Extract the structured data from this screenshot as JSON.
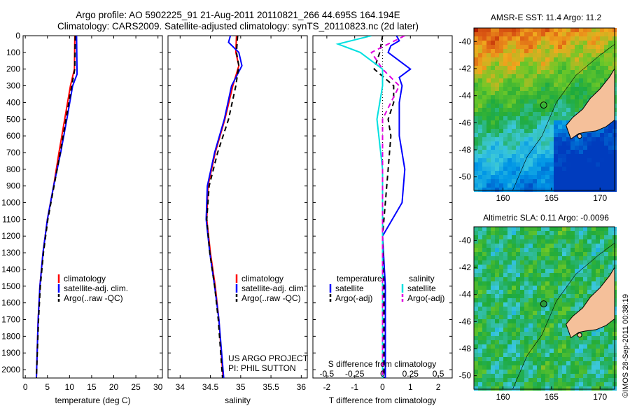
{
  "title_line1": "Argo profile: AO 5902225_91 21-Aug-2011 20110821_266 44.695S 164.194E",
  "title_line2": "Climatology: CARS2009. Satellite-adjusted climatology: synTS_20110823.nc (2d later)",
  "depth_ticks": [
    0,
    100,
    200,
    300,
    400,
    500,
    600,
    700,
    800,
    900,
    1000,
    1100,
    1200,
    1300,
    1400,
    1500,
    1600,
    1700,
    1800,
    1900,
    2000
  ],
  "colors": {
    "climatology": "#ff0000",
    "satellite": "#0000ff",
    "argo": "#000000",
    "sal_satellite": "#00e0e0",
    "sal_argo": "#e000e0",
    "land": "#f5c09a"
  },
  "chart_data": [
    {
      "type": "line",
      "name": "temperature-panel",
      "xlabel": "temperature (deg C)",
      "xlim": [
        -0.5,
        31
      ],
      "ylim": [
        2050,
        0
      ],
      "xticks": [
        0,
        5,
        10,
        15,
        20,
        25,
        30
      ],
      "legend_labels": [
        "climatology",
        "satellite-adj. clim.",
        "Argo(..raw -QC)"
      ],
      "legend_location": "center-left",
      "series": [
        {
          "name": "climatology",
          "style": "solid",
          "color": "#ff0000",
          "depth": [
            0,
            200,
            300,
            500,
            700,
            900,
            1100,
            1300,
            1500,
            1700,
            2050
          ],
          "values": [
            11.2,
            11.1,
            10.2,
            8.9,
            7.6,
            6.4,
            5.0,
            4.0,
            3.3,
            2.9,
            2.5
          ]
        },
        {
          "name": "satellite-adj. clim.",
          "style": "solid",
          "color": "#0000ff",
          "depth": [
            0,
            230,
            300,
            500,
            700,
            900,
            1100,
            1300,
            1500,
            1700,
            2050
          ],
          "values": [
            11.6,
            11.7,
            10.7,
            9.4,
            8.0,
            6.4,
            5.0,
            4.0,
            3.3,
            2.9,
            2.5
          ]
        },
        {
          "name": "Argo(..raw -QC)",
          "style": "dash",
          "color": "#000000",
          "depth": [
            0,
            200,
            300,
            500,
            700,
            900,
            1100,
            1300,
            1500,
            1700,
            2050
          ],
          "values": [
            11.3,
            11.2,
            10.5,
            9.2,
            7.9,
            6.5,
            5.1,
            4.1,
            3.4,
            3.0,
            2.5
          ]
        }
      ]
    },
    {
      "type": "line",
      "name": "salinity-panel",
      "xlabel": "salinity",
      "xlim": [
        33.8,
        36.1
      ],
      "ylim": [
        2050,
        0
      ],
      "xticks": [
        34,
        34.5,
        35,
        35.5,
        36
      ],
      "legend_labels": [
        "climatology",
        "satellite-adj. clim.",
        "Argo(..raw -QC)"
      ],
      "legend_location": "center-right",
      "annotations": [
        "US ARGO PROJECT",
        "PI: PHIL SUTTON"
      ],
      "series": [
        {
          "name": "climatology",
          "style": "solid",
          "color": "#ff0000",
          "depth": [
            0,
            100,
            180,
            300,
            500,
            700,
            900,
            1100,
            1300,
            1500,
            1700,
            2050
          ],
          "values": [
            34.93,
            34.92,
            34.97,
            34.87,
            34.74,
            34.58,
            34.46,
            34.44,
            34.5,
            34.58,
            34.64,
            34.71
          ]
        },
        {
          "name": "satellite-adj. clim.",
          "style": "solid",
          "color": "#0000ff",
          "depth": [
            0,
            40,
            100,
            180,
            300,
            500,
            700,
            900,
            1100,
            1300,
            1500,
            1700,
            2050
          ],
          "values": [
            34.83,
            34.8,
            34.97,
            35.02,
            34.85,
            34.73,
            34.57,
            34.45,
            34.43,
            34.49,
            34.57,
            34.64,
            34.72
          ]
        },
        {
          "name": "Argo(..raw -QC)",
          "style": "dash",
          "color": "#000000",
          "depth": [
            0,
            100,
            180,
            300,
            500,
            700,
            900,
            1100,
            1300,
            1500,
            1700,
            2050
          ],
          "values": [
            34.95,
            34.93,
            34.97,
            34.92,
            34.8,
            34.62,
            34.48,
            34.44,
            34.49,
            34.57,
            34.63,
            34.7
          ]
        }
      ]
    },
    {
      "type": "line",
      "name": "difference-panel",
      "xlabel": "T difference from climatology",
      "xlabel_top": "S difference from climatology",
      "xlim": [
        -2.5,
        2.5
      ],
      "ylim": [
        2050,
        0
      ],
      "xticks": [
        -2,
        -1,
        0,
        1,
        2
      ],
      "xticks_s": [
        -0.5,
        -0.25,
        0,
        0.25,
        0.5
      ],
      "legend_headers": [
        "temperature",
        "salinity"
      ],
      "legend_labels": [
        "satellite",
        "Argo(-adj)",
        "satellite",
        "Argo(-adj)"
      ],
      "series": [
        {
          "name": "temperature satellite",
          "style": "solid",
          "color": "#0000ff",
          "depth": [
            0,
            30,
            60,
            100,
            150,
            200,
            250,
            300,
            400,
            500,
            600,
            800,
            1000,
            1200,
            1500,
            1800,
            2050
          ],
          "values": [
            0.5,
            0.6,
            0.3,
            0.2,
            0.6,
            1.0,
            0.6,
            0.7,
            0.6,
            0.6,
            0.6,
            0.8,
            0.7,
            0.0,
            0.1,
            0.1,
            0.1
          ]
        },
        {
          "name": "temperature Argo(-adj)",
          "style": "dash",
          "color": "#000000",
          "depth": [
            0,
            100,
            200,
            300,
            400,
            500,
            600,
            800,
            1000,
            1200,
            1500,
            2050
          ],
          "values": [
            0.0,
            -0.1,
            -0.3,
            0.4,
            0.4,
            0.2,
            0.3,
            0.2,
            0.1,
            0.0,
            0.05,
            0.05
          ]
        },
        {
          "name": "salinity satellite",
          "style": "solid",
          "color": "#00e0e0",
          "depth": [
            0,
            50,
            100,
            200,
            300,
            500,
            800,
            1200,
            1600,
            2050
          ],
          "values": [
            -0.1,
            -0.4,
            -0.2,
            0.0,
            0.0,
            -0.05,
            0.0,
            0.0,
            0.0,
            0.0
          ]
        },
        {
          "name": "salinity Argo(-adj)",
          "style": "dash",
          "color": "#e000e0",
          "depth": [
            0,
            100,
            200,
            300,
            500,
            800,
            1200,
            1600,
            2050
          ],
          "values": [
            0.2,
            -0.1,
            0.0,
            0.15,
            0.0,
            0.0,
            0.0,
            0.0,
            0.0
          ]
        }
      ]
    },
    {
      "type": "heatmap",
      "name": "sst-map",
      "title": "AMSR-E SST: 11.4 Argo: 11.2",
      "xlim": [
        157,
        171.5
      ],
      "ylim": [
        -51,
        -39
      ],
      "xticks": [
        160,
        165,
        170
      ],
      "yticks": [
        -50,
        -48,
        -46,
        -44,
        -42,
        -40
      ],
      "argo_lon": 164.194,
      "argo_lat": -44.695
    },
    {
      "type": "heatmap",
      "name": "sla-map",
      "title": "Altimetric SLA: 0.11 Argo: -0.0096",
      "xlim": [
        157,
        171.5
      ],
      "ylim": [
        -51,
        -39
      ],
      "xticks": [
        160,
        165,
        170
      ],
      "yticks": [
        -50,
        -48,
        -46,
        -44,
        -42,
        -40
      ],
      "argo_lon": 164.194,
      "argo_lat": -44.695
    }
  ],
  "credit": "©IMOS 28-Sep-2011 00:38:19"
}
